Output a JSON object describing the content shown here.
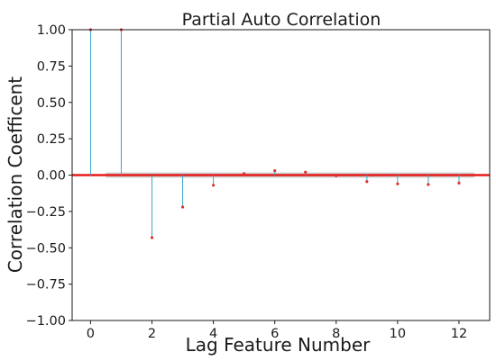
{
  "chart_data": {
    "type": "scatter",
    "style": "stem",
    "title": "Partial Auto Correlation",
    "xlabel": "Lag Feature Number",
    "ylabel": "Correlation Coefficent",
    "xlim": [
      -0.6,
      13.0
    ],
    "ylim": [
      -1.0,
      1.0
    ],
    "xticks": [
      0,
      2,
      4,
      6,
      8,
      10,
      12
    ],
    "xtick_labels": [
      "0",
      "2",
      "4",
      "6",
      "8",
      "10",
      "12"
    ],
    "yticks": [
      1.0,
      0.75,
      0.5,
      0.25,
      0.0,
      -0.25,
      -0.5,
      -0.75,
      -1.0
    ],
    "ytick_labels": [
      "1.00",
      "0.75",
      "0.50",
      "0.25",
      "0.00",
      "−0.25",
      "−0.50",
      "−0.75",
      "−1.00"
    ],
    "grid": false,
    "legend": "none",
    "series": [
      {
        "x": [
          0,
          1,
          2,
          3,
          4,
          5,
          6,
          7,
          8,
          9,
          10,
          11,
          12
        ],
        "values": [
          1.0,
          1.0,
          -0.43,
          -0.22,
          -0.07,
          0.01,
          0.03,
          0.02,
          -0.005,
          -0.045,
          -0.06,
          -0.065,
          -0.055
        ]
      }
    ],
    "confidence_band": {
      "x_range": [
        0.5,
        12.5
      ],
      "y_range": [
        -0.018,
        0.018
      ]
    },
    "zero_line": 0,
    "colors": {
      "stem": "#3aa6c9",
      "marker": "#e03030",
      "zero_line": "#e81a1a",
      "band": "#c9c9c9"
    }
  }
}
